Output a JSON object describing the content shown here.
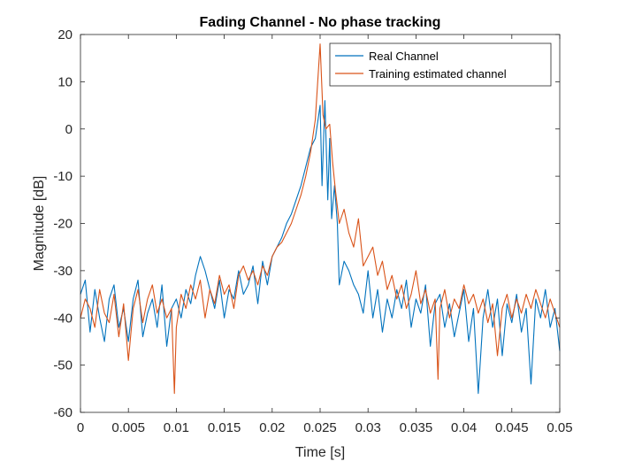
{
  "chart_data": {
    "type": "line",
    "title": "Fading Channel - No phase tracking",
    "xlabel": "Time [s]",
    "ylabel": "Magnitude [dB]",
    "xlim": [
      0,
      0.05
    ],
    "ylim": [
      -60,
      20
    ],
    "xticks": [
      0,
      0.005,
      0.01,
      0.015,
      0.02,
      0.025,
      0.03,
      0.035,
      0.04,
      0.045,
      0.05
    ],
    "xtick_labels": [
      "0",
      "0.005",
      "0.01",
      "0.015",
      "0.02",
      "0.025",
      "0.03",
      "0.035",
      "0.04",
      "0.045",
      "0.05"
    ],
    "yticks": [
      -60,
      -50,
      -40,
      -30,
      -20,
      -10,
      0,
      10,
      20
    ],
    "ytick_labels": [
      "-60",
      "-50",
      "-40",
      "-30",
      "-20",
      "-10",
      "0",
      "10",
      "20"
    ],
    "grid": false,
    "legend_position": "top-right",
    "series": [
      {
        "name": "Real Channel",
        "color": "#0072BD",
        "points": [
          [
            0.0,
            -35
          ],
          [
            0.0005,
            -32
          ],
          [
            0.001,
            -43
          ],
          [
            0.0015,
            -34
          ],
          [
            0.002,
            -40
          ],
          [
            0.0025,
            -45
          ],
          [
            0.003,
            -36
          ],
          [
            0.0035,
            -33
          ],
          [
            0.004,
            -42
          ],
          [
            0.0045,
            -38
          ],
          [
            0.005,
            -45
          ],
          [
            0.0055,
            -36
          ],
          [
            0.006,
            -32
          ],
          [
            0.0065,
            -44
          ],
          [
            0.007,
            -39
          ],
          [
            0.0075,
            -36
          ],
          [
            0.008,
            -42
          ],
          [
            0.0085,
            -33
          ],
          [
            0.009,
            -46
          ],
          [
            0.0095,
            -38
          ],
          [
            0.01,
            -36
          ],
          [
            0.0105,
            -40
          ],
          [
            0.011,
            -34
          ],
          [
            0.0115,
            -37
          ],
          [
            0.012,
            -31
          ],
          [
            0.0125,
            -27
          ],
          [
            0.013,
            -30
          ],
          [
            0.0135,
            -34
          ],
          [
            0.014,
            -38
          ],
          [
            0.0145,
            -32
          ],
          [
            0.015,
            -40
          ],
          [
            0.0155,
            -34
          ],
          [
            0.016,
            -36
          ],
          [
            0.0165,
            -30
          ],
          [
            0.017,
            -35
          ],
          [
            0.0175,
            -33
          ],
          [
            0.018,
            -29
          ],
          [
            0.0185,
            -37
          ],
          [
            0.019,
            -28
          ],
          [
            0.0195,
            -33
          ],
          [
            0.02,
            -27
          ],
          [
            0.0205,
            -25
          ],
          [
            0.021,
            -23
          ],
          [
            0.0215,
            -20
          ],
          [
            0.022,
            -18
          ],
          [
            0.0225,
            -15
          ],
          [
            0.023,
            -12
          ],
          [
            0.0235,
            -8
          ],
          [
            0.024,
            -4
          ],
          [
            0.0245,
            -2
          ],
          [
            0.025,
            5
          ],
          [
            0.0252,
            -12
          ],
          [
            0.0255,
            6
          ],
          [
            0.0258,
            -15
          ],
          [
            0.026,
            -2
          ],
          [
            0.0262,
            -19
          ],
          [
            0.0265,
            -12
          ],
          [
            0.0268,
            -20
          ],
          [
            0.027,
            -33
          ],
          [
            0.0275,
            -28
          ],
          [
            0.028,
            -30
          ],
          [
            0.0285,
            -33
          ],
          [
            0.029,
            -35
          ],
          [
            0.0295,
            -39
          ],
          [
            0.03,
            -30
          ],
          [
            0.0305,
            -40
          ],
          [
            0.031,
            -34
          ],
          [
            0.0315,
            -43
          ],
          [
            0.032,
            -36
          ],
          [
            0.0325,
            -40
          ],
          [
            0.033,
            -34
          ],
          [
            0.0335,
            -38
          ],
          [
            0.034,
            -32
          ],
          [
            0.0345,
            -42
          ],
          [
            0.035,
            -36
          ],
          [
            0.0355,
            -39
          ],
          [
            0.036,
            -33
          ],
          [
            0.0365,
            -46
          ],
          [
            0.037,
            -37
          ],
          [
            0.0375,
            -35
          ],
          [
            0.038,
            -42
          ],
          [
            0.0385,
            -37
          ],
          [
            0.039,
            -44
          ],
          [
            0.0395,
            -39
          ],
          [
            0.04,
            -34
          ],
          [
            0.0405,
            -45
          ],
          [
            0.041,
            -38
          ],
          [
            0.0415,
            -56
          ],
          [
            0.042,
            -40
          ],
          [
            0.0425,
            -34
          ],
          [
            0.043,
            -42
          ],
          [
            0.0435,
            -36
          ],
          [
            0.044,
            -48
          ],
          [
            0.0445,
            -37
          ],
          [
            0.045,
            -41
          ],
          [
            0.0455,
            -35
          ],
          [
            0.046,
            -43
          ],
          [
            0.0465,
            -38
          ],
          [
            0.047,
            -54
          ],
          [
            0.0475,
            -36
          ],
          [
            0.048,
            -40
          ],
          [
            0.0485,
            -34
          ],
          [
            0.049,
            -42
          ],
          [
            0.0495,
            -38
          ],
          [
            0.05,
            -47
          ]
        ]
      },
      {
        "name": "Training estimated channel",
        "color": "#D95319",
        "points": [
          [
            0.0,
            -40
          ],
          [
            0.0005,
            -36
          ],
          [
            0.001,
            -38
          ],
          [
            0.0015,
            -42
          ],
          [
            0.002,
            -34
          ],
          [
            0.0025,
            -39
          ],
          [
            0.003,
            -41
          ],
          [
            0.0035,
            -35
          ],
          [
            0.004,
            -44
          ],
          [
            0.0045,
            -37
          ],
          [
            0.005,
            -49
          ],
          [
            0.0055,
            -38
          ],
          [
            0.006,
            -34
          ],
          [
            0.0065,
            -41
          ],
          [
            0.007,
            -36
          ],
          [
            0.0075,
            -33
          ],
          [
            0.008,
            -39
          ],
          [
            0.0085,
            -36
          ],
          [
            0.009,
            -40
          ],
          [
            0.0095,
            -38
          ],
          [
            0.0098,
            -56
          ],
          [
            0.01,
            -42
          ],
          [
            0.0105,
            -35
          ],
          [
            0.011,
            -38
          ],
          [
            0.0115,
            -33
          ],
          [
            0.012,
            -36
          ],
          [
            0.0125,
            -32
          ],
          [
            0.013,
            -40
          ],
          [
            0.0135,
            -34
          ],
          [
            0.014,
            -37
          ],
          [
            0.0145,
            -31
          ],
          [
            0.015,
            -35
          ],
          [
            0.0155,
            -33
          ],
          [
            0.016,
            -38
          ],
          [
            0.0165,
            -31
          ],
          [
            0.017,
            -29
          ],
          [
            0.0175,
            -32
          ],
          [
            0.018,
            -30
          ],
          [
            0.0185,
            -33
          ],
          [
            0.019,
            -29
          ],
          [
            0.0195,
            -31
          ],
          [
            0.02,
            -27
          ],
          [
            0.0205,
            -25
          ],
          [
            0.021,
            -24
          ],
          [
            0.0215,
            -22
          ],
          [
            0.022,
            -20
          ],
          [
            0.0225,
            -17
          ],
          [
            0.023,
            -14
          ],
          [
            0.0235,
            -10
          ],
          [
            0.024,
            -5
          ],
          [
            0.0245,
            2
          ],
          [
            0.025,
            18
          ],
          [
            0.0253,
            3
          ],
          [
            0.0256,
            0
          ],
          [
            0.026,
            1
          ],
          [
            0.0263,
            -7
          ],
          [
            0.0266,
            -13
          ],
          [
            0.027,
            -20
          ],
          [
            0.0275,
            -17
          ],
          [
            0.028,
            -22
          ],
          [
            0.0285,
            -25
          ],
          [
            0.029,
            -19
          ],
          [
            0.0295,
            -29
          ],
          [
            0.03,
            -27
          ],
          [
            0.0305,
            -25
          ],
          [
            0.031,
            -31
          ],
          [
            0.0315,
            -28
          ],
          [
            0.032,
            -34
          ],
          [
            0.0325,
            -31
          ],
          [
            0.033,
            -36
          ],
          [
            0.0335,
            -33
          ],
          [
            0.034,
            -38
          ],
          [
            0.0345,
            -35
          ],
          [
            0.035,
            -30
          ],
          [
            0.0355,
            -37
          ],
          [
            0.036,
            -34
          ],
          [
            0.0365,
            -39
          ],
          [
            0.037,
            -36
          ],
          [
            0.0373,
            -53
          ],
          [
            0.0375,
            -38
          ],
          [
            0.038,
            -34
          ],
          [
            0.0385,
            -40
          ],
          [
            0.039,
            -36
          ],
          [
            0.0395,
            -38
          ],
          [
            0.04,
            -33
          ],
          [
            0.0405,
            -37
          ],
          [
            0.041,
            -35
          ],
          [
            0.0415,
            -39
          ],
          [
            0.042,
            -36
          ],
          [
            0.0425,
            -41
          ],
          [
            0.043,
            -37
          ],
          [
            0.0435,
            -48
          ],
          [
            0.044,
            -38
          ],
          [
            0.0445,
            -35
          ],
          [
            0.045,
            -40
          ],
          [
            0.0455,
            -36
          ],
          [
            0.046,
            -39
          ],
          [
            0.0465,
            -35
          ],
          [
            0.047,
            -38
          ],
          [
            0.0475,
            -34
          ],
          [
            0.048,
            -37
          ],
          [
            0.0485,
            -40
          ],
          [
            0.049,
            -36
          ],
          [
            0.0495,
            -39
          ],
          [
            0.05,
            -42
          ]
        ]
      }
    ]
  }
}
